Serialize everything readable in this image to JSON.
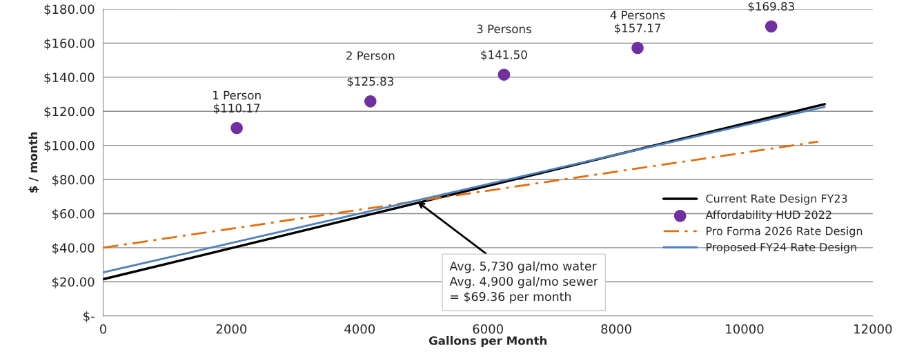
{
  "chart_data": {
    "type": "line",
    "xlabel": "Gallons per Month",
    "ylabel": "$ / month",
    "xlim": [
      0,
      12000
    ],
    "xticks": [
      0,
      2000,
      4000,
      6000,
      8000,
      10000,
      12000
    ],
    "ylim": [
      0,
      180
    ],
    "yticks": [
      {
        "value": 0,
        "label": "$-"
      },
      {
        "value": 20,
        "label": "$20.00"
      },
      {
        "value": 40,
        "label": "$40.00"
      },
      {
        "value": 60,
        "label": "$60.00"
      },
      {
        "value": 80,
        "label": "$80.00"
      },
      {
        "value": 100,
        "label": "$100.00"
      },
      {
        "value": 120,
        "label": "$120.00"
      },
      {
        "value": 140,
        "label": "$140.00"
      },
      {
        "value": 160,
        "label": "$160.00"
      },
      {
        "value": 180,
        "label": "$180.00"
      }
    ],
    "grid": "y",
    "legend": "right",
    "series": [
      {
        "name": "Current Rate Design FY23",
        "type": "line",
        "color": "#000000",
        "line_style": "solid",
        "marker": "none",
        "x": [
          0,
          11250
        ],
        "values": [
          21.5,
          124.2
        ]
      },
      {
        "name": "Affordability HUD 2022",
        "type": "scatter",
        "color": "#7030a0",
        "marker": "circle",
        "x": [
          2083,
          4167,
          6250,
          8333,
          10417
        ],
        "values": [
          110.17,
          125.83,
          141.5,
          157.17,
          169.83
        ],
        "value_labels": [
          "1 Person\n$110.17",
          "2 Person\n\n$125.83",
          "3 Persons\n\n$141.50",
          "4 Persons\n$157.17",
          "$169.83"
        ]
      },
      {
        "name": "Pro Forma 2026 Rate Design",
        "type": "line",
        "color": "#e46c0a",
        "line_style": "dashdot",
        "marker": "none",
        "x": [
          0,
          11150
        ],
        "values": [
          40,
          102.2
        ]
      },
      {
        "name": "Proposed FY24 Rate Design",
        "type": "line",
        "color": "#4f81bd",
        "line_style": "solid",
        "marker": "none",
        "x": [
          0,
          11250
        ],
        "values": [
          25.5,
          122.6
        ]
      }
    ],
    "annotations": [
      {
        "text": "Avg. 5,730 gal/mo water\nAvg. 4,900 gal/mo sewer\n= $69.36 per month",
        "x": 4900,
        "y": 67
      }
    ]
  }
}
